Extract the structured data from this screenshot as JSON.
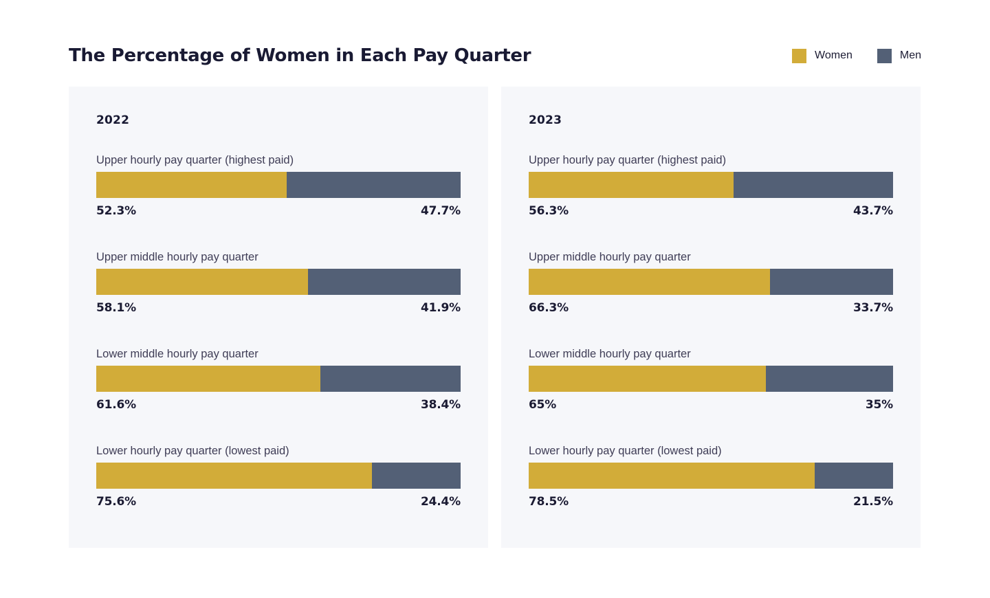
{
  "page": {
    "title": "The Percentage of Women in Each Pay Quarter"
  },
  "colors": {
    "women": "#D2AC39",
    "men": "#536076",
    "panel_bg": "#F6F7FA",
    "heading_text": "#191A33",
    "label_text": "#3F3D56",
    "value_text": "#1B1B33"
  },
  "legend": [
    {
      "label": "Women",
      "color": "#D2AC39"
    },
    {
      "label": "Men",
      "color": "#536076"
    }
  ],
  "chart_data": [
    {
      "type": "bar",
      "title": "2022",
      "subtitle": "",
      "orientation": "horizontal",
      "stacked": true,
      "unit": "%",
      "xlim": [
        0,
        100
      ],
      "legend_position": "top-right",
      "grid": false,
      "categories": [
        "Upper hourly pay quarter (highest paid)",
        "Upper middle hourly pay quarter",
        "Lower middle hourly pay quarter",
        "Lower hourly pay quarter (lowest paid)"
      ],
      "series": [
        {
          "name": "Women",
          "values": [
            52.3,
            58.1,
            61.6,
            75.6
          ]
        },
        {
          "name": "Men",
          "values": [
            47.7,
            41.9,
            38.4,
            24.4
          ]
        }
      ]
    },
    {
      "type": "bar",
      "title": "2023",
      "subtitle": "",
      "orientation": "horizontal",
      "stacked": true,
      "unit": "%",
      "xlim": [
        0,
        100
      ],
      "legend_position": "top-right",
      "grid": false,
      "categories": [
        "Upper hourly pay quarter (highest paid)",
        "Upper middle hourly pay quarter",
        "Lower middle hourly pay quarter",
        "Lower hourly pay quarter (lowest paid)"
      ],
      "series": [
        {
          "name": "Women",
          "values": [
            56.3,
            66.3,
            65,
            78.5
          ]
        },
        {
          "name": "Men",
          "values": [
            43.7,
            33.7,
            35,
            21.5
          ]
        }
      ]
    }
  ],
  "panels": [
    {
      "year": "2022",
      "rows": [
        {
          "label": "Upper hourly pay quarter (highest paid)",
          "women": 52.3,
          "men": 47.7,
          "women_label": "52.3%",
          "men_label": "47.7%"
        },
        {
          "label": "Upper middle hourly pay quarter",
          "women": 58.1,
          "men": 41.9,
          "women_label": "58.1%",
          "men_label": "41.9%"
        },
        {
          "label": "Lower middle hourly pay quarter",
          "women": 61.6,
          "men": 38.4,
          "women_label": "61.6%",
          "men_label": "38.4%"
        },
        {
          "label": "Lower hourly pay quarter (lowest paid)",
          "women": 75.6,
          "men": 24.4,
          "women_label": "75.6%",
          "men_label": "24.4%"
        }
      ]
    },
    {
      "year": "2023",
      "rows": [
        {
          "label": "Upper hourly pay quarter (highest paid)",
          "women": 56.3,
          "men": 43.7,
          "women_label": "56.3%",
          "men_label": "43.7%"
        },
        {
          "label": "Upper middle hourly pay quarter",
          "women": 66.3,
          "men": 33.7,
          "women_label": "66.3%",
          "men_label": "33.7%"
        },
        {
          "label": "Lower middle hourly pay quarter",
          "women": 65,
          "men": 35,
          "women_label": "65%",
          "men_label": "35%"
        },
        {
          "label": "Lower hourly pay quarter (lowest paid)",
          "women": 78.5,
          "men": 21.5,
          "women_label": "78.5%",
          "men_label": "21.5%"
        }
      ]
    }
  ]
}
